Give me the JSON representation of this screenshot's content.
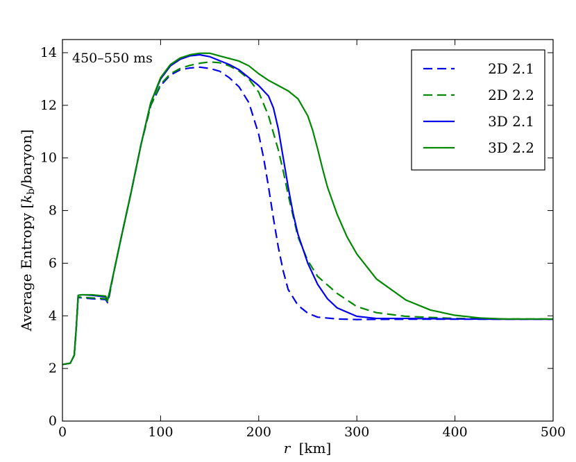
{
  "chart_data": {
    "type": "line",
    "title": "",
    "annotation": "450–550 ms",
    "xlabel_var": "r",
    "xlabel_unit": "[km]",
    "ylabel_main": "Average Entropy [",
    "ylabel_k": "k",
    "ylabel_sub": "b",
    "ylabel_tail": "/baryon]",
    "xlim": [
      0,
      500
    ],
    "ylim": [
      0,
      14.5
    ],
    "xticks": [
      0,
      100,
      200,
      300,
      400,
      500
    ],
    "yticks": [
      0,
      2,
      4,
      6,
      8,
      10,
      12,
      14
    ],
    "xtick_labels": [
      "0",
      "100",
      "200",
      "300",
      "400",
      "500"
    ],
    "ytick_labels": [
      "0",
      "2",
      "4",
      "6",
      "8",
      "10",
      "12",
      "14"
    ],
    "grid": false,
    "legend_position": "top-right",
    "series": [
      {
        "name": "2D 2.1",
        "color": "#0000ee",
        "dash": "dashed",
        "x": [
          0,
          8,
          12,
          14,
          16,
          20,
          30,
          44,
          46,
          48,
          52,
          60,
          70,
          80,
          90,
          100,
          110,
          120,
          130,
          140,
          150,
          160,
          170,
          180,
          190,
          200,
          205,
          210,
          215,
          220,
          225,
          230,
          240,
          250,
          260,
          280,
          300,
          350,
          400,
          450,
          500
        ],
        "y": [
          2.15,
          2.2,
          2.5,
          3.5,
          4.7,
          4.68,
          4.65,
          4.62,
          4.5,
          4.8,
          5.6,
          7.0,
          8.7,
          10.5,
          12.0,
          12.75,
          13.15,
          13.35,
          13.42,
          13.45,
          13.4,
          13.3,
          13.05,
          12.7,
          12.1,
          10.9,
          10.0,
          8.9,
          7.7,
          6.6,
          5.7,
          5.0,
          4.4,
          4.1,
          3.95,
          3.88,
          3.86,
          3.87,
          3.87,
          3.87,
          3.87
        ]
      },
      {
        "name": "2D 2.2",
        "color": "#008800",
        "dash": "dashed",
        "x": [
          0,
          8,
          12,
          14,
          16,
          20,
          30,
          44,
          46,
          48,
          52,
          60,
          70,
          80,
          90,
          100,
          110,
          120,
          130,
          140,
          150,
          160,
          170,
          180,
          190,
          200,
          210,
          220,
          225,
          230,
          235,
          240,
          250,
          260,
          280,
          300,
          320,
          350,
          400,
          450,
          500
        ],
        "y": [
          2.15,
          2.2,
          2.5,
          3.5,
          4.72,
          4.7,
          4.68,
          4.65,
          4.55,
          4.85,
          5.6,
          7.0,
          8.7,
          10.5,
          12.0,
          12.8,
          13.2,
          13.4,
          13.52,
          13.6,
          13.65,
          13.62,
          13.5,
          13.3,
          13.0,
          12.5,
          11.6,
          10.3,
          9.5,
          8.6,
          7.8,
          7.0,
          6.1,
          5.5,
          4.85,
          4.35,
          4.12,
          3.98,
          3.9,
          3.88,
          3.88
        ]
      },
      {
        "name": "3D 2.1",
        "color": "#0000ee",
        "dash": "solid",
        "x": [
          0,
          8,
          12,
          14,
          16,
          20,
          30,
          44,
          46,
          48,
          52,
          60,
          70,
          80,
          90,
          100,
          110,
          120,
          130,
          140,
          150,
          160,
          170,
          180,
          190,
          200,
          210,
          215,
          220,
          225,
          230,
          235,
          240,
          250,
          260,
          270,
          280,
          300,
          320,
          350,
          400,
          450,
          500
        ],
        "y": [
          2.15,
          2.2,
          2.5,
          3.5,
          4.78,
          4.8,
          4.78,
          4.72,
          4.6,
          4.9,
          5.6,
          7.0,
          8.7,
          10.5,
          12.1,
          13.0,
          13.5,
          13.75,
          13.88,
          13.92,
          13.85,
          13.7,
          13.55,
          13.35,
          13.05,
          12.75,
          12.35,
          11.9,
          11.1,
          10.0,
          8.9,
          7.9,
          7.1,
          6.0,
          5.2,
          4.65,
          4.3,
          3.98,
          3.9,
          3.9,
          3.88,
          3.87,
          3.87
        ]
      },
      {
        "name": "3D 2.2",
        "color": "#008800",
        "dash": "solid",
        "x": [
          0,
          8,
          12,
          14,
          16,
          20,
          30,
          44,
          46,
          48,
          52,
          60,
          70,
          80,
          90,
          100,
          110,
          120,
          130,
          140,
          150,
          160,
          170,
          180,
          190,
          200,
          210,
          220,
          230,
          240,
          250,
          255,
          260,
          265,
          270,
          280,
          290,
          300,
          320,
          350,
          375,
          400,
          425,
          450,
          500
        ],
        "y": [
          2.15,
          2.2,
          2.5,
          3.5,
          4.78,
          4.8,
          4.8,
          4.75,
          4.6,
          4.9,
          5.6,
          7.0,
          8.7,
          10.5,
          12.1,
          13.05,
          13.55,
          13.8,
          13.92,
          13.98,
          13.98,
          13.88,
          13.78,
          13.68,
          13.5,
          13.2,
          12.95,
          12.75,
          12.55,
          12.25,
          11.6,
          11.05,
          10.35,
          9.6,
          8.9,
          7.85,
          7.0,
          6.35,
          5.4,
          4.6,
          4.22,
          4.02,
          3.92,
          3.88,
          3.88
        ]
      }
    ]
  }
}
